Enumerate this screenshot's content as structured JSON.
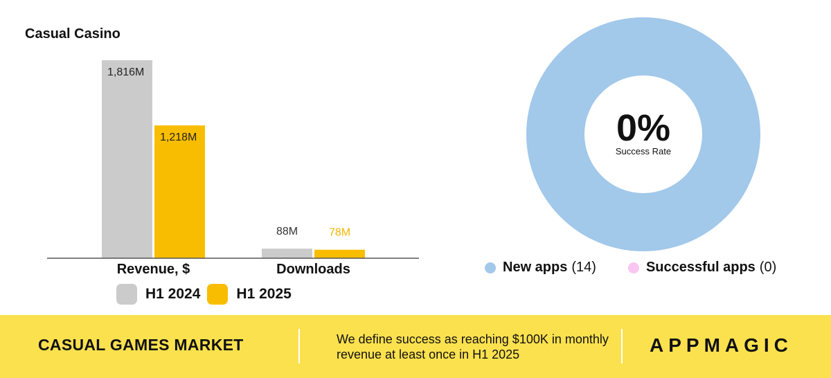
{
  "chart_data": [
    {
      "type": "bar",
      "title": "Casual Casino",
      "categories": [
        "Revenue, $",
        "Downloads"
      ],
      "series": [
        {
          "name": "H1 2024",
          "values": [
            1816,
            88
          ],
          "value_labels": [
            "1,816M",
            "88M"
          ],
          "color": "#CBCBCB",
          "label_color": "#333333"
        },
        {
          "name": "H1 2025",
          "values": [
            1218,
            78
          ],
          "value_labels": [
            "1,218M",
            "78M"
          ],
          "color": "#F9BD00",
          "label_color": "#F2B600"
        }
      ],
      "unit": "M",
      "ylim": [
        0,
        1816
      ],
      "grid": false,
      "legend": "bottom"
    },
    {
      "type": "pie",
      "variant": "donut",
      "center_value": "0%",
      "center_label": "Success Rate",
      "slices": [
        {
          "name": "New apps",
          "value": 14,
          "count_label": "(14)",
          "color": "#A2C8EA"
        },
        {
          "name": "Successful apps",
          "value": 0,
          "count_label": "(0)",
          "color": "#F9C6F2"
        }
      ],
      "legend": "bottom"
    }
  ],
  "footer": {
    "market": "CASUAL GAMES MARKET",
    "note": "We define success as reaching $100K in monthly revenue at least once in H1 2025",
    "logo": "APPMAGIC",
    "background": "#FCE14F"
  }
}
